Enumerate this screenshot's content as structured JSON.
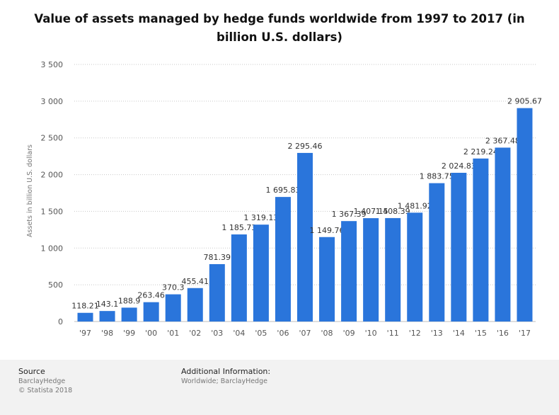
{
  "chart_data": {
    "type": "bar",
    "title": "Value of assets managed by hedge funds worldwide from 1997 to 2017 (in billion U.S. dollars)",
    "ylabel": "Assets in billion U.S. dollars",
    "xlabel": "",
    "ylim": [
      0,
      3500
    ],
    "yticks": [
      0,
      500,
      1000,
      1500,
      2000,
      2500,
      3000,
      3500
    ],
    "ytick_labels": [
      "0",
      "500",
      "1 000",
      "1 500",
      "2 000",
      "2 500",
      "3 000",
      "3 500"
    ],
    "grid": true,
    "bar_color": "#2a75db",
    "categories": [
      "'97",
      "'98",
      "'99",
      "'00",
      "'01",
      "'02",
      "'03",
      "'04",
      "'05",
      "'06",
      "'07",
      "'08",
      "'09",
      "'10",
      "'11",
      "'12",
      "'13",
      "'14",
      "'15",
      "'16",
      "'17"
    ],
    "values": [
      118.21,
      143.1,
      188.9,
      263.46,
      370.3,
      455.41,
      781.39,
      1185.73,
      1319.13,
      1695.83,
      2295.46,
      1149.76,
      1367.39,
      1407.15,
      1408.39,
      1481.92,
      1883.75,
      2024.83,
      2219.24,
      2367.48,
      2905.67
    ],
    "value_labels": [
      "118.21",
      "143.1",
      "188.9",
      "263.46",
      "370.3",
      "455.41",
      "781.39",
      "1 185.73",
      "1 319.13",
      "1 695.83",
      "2 295.46",
      "1 149.76",
      "1 367.39",
      "1 407.15",
      "1 408.39",
      "1 481.92",
      "1 883.75",
      "2 024.83",
      "2 219.24",
      "2 367.48",
      "2 905.67"
    ]
  },
  "footer": {
    "source_heading": "Source",
    "source_lines": [
      "BarclayHedge",
      "© Statista 2018"
    ],
    "info_heading": "Additional Information:",
    "info_lines": [
      "Worldwide; BarclayHedge"
    ]
  }
}
